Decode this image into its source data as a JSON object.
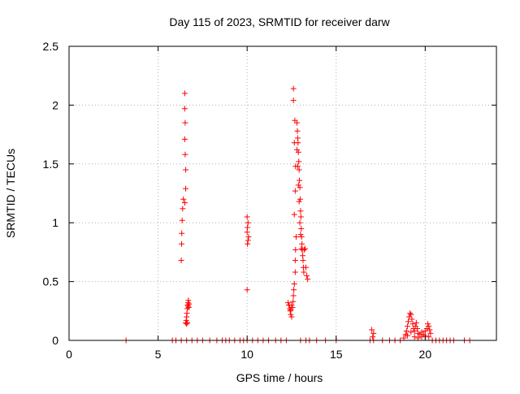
{
  "chart_data": {
    "type": "scatter",
    "title": "Day 115 of 2023, SRMTID for receiver darw",
    "xlabel": "GPS time / hours",
    "ylabel": "SRMTID / TECUs",
    "xlim": [
      0,
      24
    ],
    "ylim": [
      0,
      2.5
    ],
    "xticks": [
      0,
      5,
      10,
      15,
      20
    ],
    "xtick_labels": [
      "0",
      "5",
      "10",
      "15",
      "20"
    ],
    "yticks": [
      0,
      0.5,
      1,
      1.5,
      2,
      2.5
    ],
    "ytick_labels": [
      "0",
      "0.5",
      "1",
      "1.5",
      "2",
      "2.5"
    ],
    "grid": true,
    "marker": "+",
    "series": [
      {
        "name": "SRMTID",
        "color": "#ff0000",
        "points": [
          [
            3.2,
            0
          ],
          [
            5.8,
            0
          ],
          [
            6.0,
            0
          ],
          [
            6.3,
            0
          ],
          [
            6.6,
            0
          ],
          [
            6.9,
            0
          ],
          [
            7.2,
            0
          ],
          [
            7.5,
            0
          ],
          [
            7.9,
            0
          ],
          [
            8.3,
            0
          ],
          [
            8.6,
            0
          ],
          [
            8.8,
            0
          ],
          [
            9.0,
            0
          ],
          [
            9.3,
            0
          ],
          [
            9.6,
            0
          ],
          [
            9.8,
            0
          ],
          [
            10.0,
            0
          ],
          [
            10.3,
            0
          ],
          [
            10.6,
            0
          ],
          [
            10.9,
            0
          ],
          [
            11.2,
            0
          ],
          [
            11.6,
            0
          ],
          [
            11.9,
            0
          ],
          [
            12.2,
            0
          ],
          [
            13.0,
            0
          ],
          [
            13.5,
            0
          ],
          [
            13.9,
            0
          ],
          [
            14.4,
            0
          ],
          [
            15.0,
            0
          ],
          [
            16.9,
            0
          ],
          [
            17.1,
            0
          ],
          [
            17.6,
            0
          ],
          [
            18.0,
            0
          ],
          [
            18.3,
            0
          ],
          [
            18.6,
            0
          ],
          [
            20.4,
            0
          ],
          [
            20.6,
            0
          ],
          [
            20.8,
            0
          ],
          [
            21.0,
            0
          ],
          [
            21.2,
            0
          ],
          [
            21.4,
            0
          ],
          [
            21.6,
            0
          ],
          [
            22.2,
            0
          ],
          [
            22.5,
            0
          ],
          [
            6.3,
            0.68
          ],
          [
            6.32,
            0.82
          ],
          [
            6.33,
            0.91
          ],
          [
            6.35,
            1.02
          ],
          [
            6.38,
            1.12
          ],
          [
            6.42,
            1.2
          ],
          [
            6.5,
            1.17
          ],
          [
            6.55,
            1.29
          ],
          [
            6.55,
            1.45
          ],
          [
            6.52,
            1.58
          ],
          [
            6.5,
            1.71
          ],
          [
            6.52,
            1.85
          ],
          [
            6.5,
            1.97
          ],
          [
            6.5,
            2.1
          ],
          [
            6.55,
            0.15
          ],
          [
            6.58,
            0.17
          ],
          [
            6.6,
            0.2
          ],
          [
            6.62,
            0.23
          ],
          [
            6.64,
            0.27
          ],
          [
            6.66,
            0.3
          ],
          [
            6.68,
            0.32
          ],
          [
            6.7,
            0.34
          ],
          [
            6.72,
            0.28
          ],
          [
            6.74,
            0.31
          ],
          [
            6.6,
            0.14
          ],
          [
            6.65,
            0.15
          ],
          [
            6.68,
            0.29
          ],
          [
            10.0,
            0.43
          ],
          [
            10.02,
            0.82
          ],
          [
            10.05,
            0.85
          ],
          [
            10.08,
            0.88
          ],
          [
            10.0,
            0.92
          ],
          [
            10.02,
            0.96
          ],
          [
            10.05,
            1.0
          ],
          [
            10.0,
            1.05
          ],
          [
            12.3,
            0.32
          ],
          [
            12.35,
            0.3
          ],
          [
            12.4,
            0.27
          ],
          [
            12.42,
            0.25
          ],
          [
            12.45,
            0.22
          ],
          [
            12.5,
            0.2
          ],
          [
            12.55,
            0.28
          ],
          [
            12.58,
            0.33
          ],
          [
            12.6,
            0.38
          ],
          [
            12.62,
            0.43
          ],
          [
            12.65,
            0.48
          ],
          [
            12.7,
            0.58
          ],
          [
            12.7,
            0.68
          ],
          [
            12.72,
            0.77
          ],
          [
            12.75,
            0.88
          ],
          [
            12.65,
            1.07
          ],
          [
            12.7,
            1.27
          ],
          [
            12.72,
            1.48
          ],
          [
            12.65,
            1.68
          ],
          [
            12.68,
            1.87
          ],
          [
            12.6,
            2.04
          ],
          [
            12.6,
            2.14
          ],
          [
            12.35,
            0.3
          ],
          [
            12.45,
            0.26
          ],
          [
            12.5,
            0.3
          ],
          [
            12.8,
            1.85
          ],
          [
            12.82,
            1.78
          ],
          [
            12.84,
            1.72
          ],
          [
            12.86,
            1.68
          ],
          [
            12.88,
            1.6
          ],
          [
            12.9,
            1.52
          ],
          [
            12.92,
            1.45
          ],
          [
            12.94,
            1.36
          ],
          [
            12.96,
            1.3
          ],
          [
            12.98,
            1.2
          ],
          [
            13.0,
            1.1
          ],
          [
            13.02,
            1.05
          ],
          [
            13.04,
            0.95
          ],
          [
            13.06,
            0.88
          ],
          [
            13.08,
            0.82
          ],
          [
            13.1,
            0.77
          ],
          [
            13.12,
            0.72
          ],
          [
            13.14,
            0.68
          ],
          [
            13.16,
            0.62
          ],
          [
            13.18,
            0.58
          ],
          [
            12.8,
            1.62
          ],
          [
            12.84,
            1.48
          ],
          [
            12.88,
            1.32
          ],
          [
            12.92,
            1.18
          ],
          [
            12.96,
            1.0
          ],
          [
            13.0,
            0.9
          ],
          [
            13.05,
            0.78
          ],
          [
            13.2,
            0.77
          ],
          [
            13.25,
            0.78
          ],
          [
            13.3,
            0.62
          ],
          [
            13.35,
            0.55
          ],
          [
            13.4,
            0.52
          ],
          [
            13.3,
            0.0
          ],
          [
            17.0,
            0.09
          ],
          [
            17.1,
            0.06
          ],
          [
            17.05,
            0.03
          ],
          [
            18.8,
            0.02
          ],
          [
            18.9,
            0.05
          ],
          [
            18.95,
            0.08
          ],
          [
            19.0,
            0.12
          ],
          [
            19.05,
            0.16
          ],
          [
            19.1,
            0.2
          ],
          [
            19.15,
            0.23
          ],
          [
            19.2,
            0.22
          ],
          [
            19.25,
            0.18
          ],
          [
            19.3,
            0.14
          ],
          [
            19.35,
            0.1
          ],
          [
            19.4,
            0.08
          ],
          [
            19.45,
            0.12
          ],
          [
            19.5,
            0.15
          ],
          [
            19.55,
            0.1
          ],
          [
            19.6,
            0.06
          ],
          [
            19.7,
            0.05
          ],
          [
            19.8,
            0.07
          ],
          [
            19.9,
            0.05
          ],
          [
            20.0,
            0.08
          ],
          [
            20.1,
            0.1
          ],
          [
            20.15,
            0.14
          ],
          [
            20.2,
            0.12
          ],
          [
            20.25,
            0.09
          ],
          [
            20.3,
            0.06
          ],
          [
            19.0,
            0.04
          ],
          [
            19.2,
            0.07
          ],
          [
            19.4,
            0.03
          ],
          [
            19.6,
            0.02
          ],
          [
            19.8,
            0.03
          ],
          [
            20.0,
            0.04
          ],
          [
            20.2,
            0.03
          ]
        ]
      }
    ]
  }
}
